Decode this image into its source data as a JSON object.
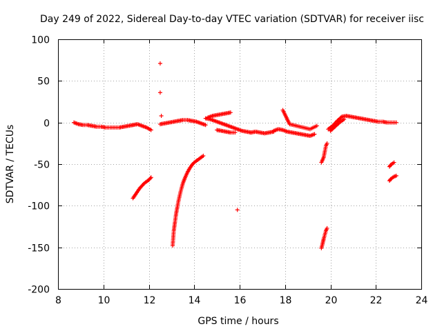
{
  "chart_data": {
    "type": "scatter",
    "title": "Day 249 of 2022, Sidereal Day-to-day VTEC variation (SDTVAR) for receiver iisc",
    "xlabel": "GPS time / hours",
    "ylabel": "SDTVAR / TECUs",
    "xlim": [
      8,
      24
    ],
    "ylim": [
      -200,
      100
    ],
    "xticks": [
      8,
      10,
      12,
      14,
      16,
      18,
      20,
      22,
      24
    ],
    "yticks": [
      -200,
      -150,
      -100,
      -50,
      0,
      50,
      100
    ],
    "grid": true,
    "marker": "+",
    "color": "#ff0000",
    "series": [
      {
        "name": "arc-main-1",
        "x": [
          8.7,
          8.9,
          9.1,
          9.3,
          9.5,
          9.7,
          9.9,
          10.1,
          10.3,
          10.5,
          10.7,
          10.9,
          11.1,
          11.3
        ],
        "y": [
          0,
          -2,
          -3,
          -3,
          -4,
          -5,
          -5,
          -6,
          -6,
          -6,
          -6,
          -5,
          -4,
          -3
        ]
      },
      {
        "name": "arc-early-11",
        "x": [
          11.3,
          11.5,
          11.7,
          11.9,
          12.1
        ],
        "y": [
          -3,
          -2,
          -4,
          -6,
          -9
        ]
      },
      {
        "name": "arc-lower-11",
        "x": [
          11.3,
          11.4,
          11.5,
          11.6,
          11.7,
          11.8,
          11.9,
          12.0,
          12.1
        ],
        "y": [
          -91,
          -87,
          -83,
          -79,
          -76,
          -73,
          -71,
          -69,
          -66
        ]
      },
      {
        "name": "arc-spikes-12.5",
        "x": [
          12.5,
          12.5,
          12.55
        ],
        "y": [
          71,
          36,
          8
        ]
      },
      {
        "name": "arc-mid-12.5",
        "x": [
          12.5,
          12.7,
          12.9,
          13.1,
          13.3,
          13.5,
          13.7,
          13.9,
          14.1,
          14.3,
          14.5
        ],
        "y": [
          -2,
          -1,
          0,
          1,
          2,
          3,
          3,
          2,
          1,
          -1,
          -3
        ]
      },
      {
        "name": "arc-rise-13",
        "x": [
          13.05,
          13.1,
          13.2,
          13.3,
          13.4,
          13.5,
          13.6,
          13.7,
          13.8,
          13.9,
          14.0,
          14.1,
          14.2,
          14.3,
          14.4
        ],
        "y": [
          -148,
          -130,
          -110,
          -95,
          -83,
          -73,
          -66,
          -60,
          -55,
          -51,
          -48,
          -46,
          -44,
          -42,
          -40
        ]
      },
      {
        "name": "arc-main-15",
        "x": [
          14.5,
          14.7,
          14.9,
          15.1,
          15.3,
          15.5,
          15.7,
          15.9,
          16.1,
          16.3,
          16.5
        ],
        "y": [
          5,
          4,
          2,
          0,
          -2,
          -4,
          -6,
          -8,
          -10,
          -11,
          -12
        ]
      },
      {
        "name": "arc-upper-15",
        "x": [
          14.6,
          14.8,
          15.0,
          15.2,
          15.4,
          15.6
        ],
        "y": [
          6,
          8,
          9,
          10,
          11,
          12
        ]
      },
      {
        "name": "arc-lower-15",
        "x": [
          15.0,
          15.2,
          15.4,
          15.6,
          15.8
        ],
        "y": [
          -9,
          -10,
          -11,
          -12,
          -12
        ]
      },
      {
        "name": "outlier-16",
        "x": [
          15.9
        ],
        "y": [
          -105
        ]
      },
      {
        "name": "arc-main-17",
        "x": [
          16.5,
          16.7,
          16.9,
          17.1,
          17.3,
          17.5
        ],
        "y": [
          -12,
          -11,
          -12,
          -13,
          -12,
          -11
        ]
      },
      {
        "name": "arc-main-18",
        "x": [
          17.5,
          17.7,
          17.9,
          18.1,
          18.3,
          18.5,
          18.7,
          18.9,
          19.1,
          19.3
        ],
        "y": [
          -10,
          -8,
          -9,
          -11,
          -12,
          -13,
          -14,
          -15,
          -16,
          -14
        ]
      },
      {
        "name": "arc-extra-18",
        "x": [
          17.9,
          18.2,
          18.5,
          18.8,
          19.1,
          19.4
        ],
        "y": [
          15,
          -2,
          -4,
          -6,
          -8,
          -4
        ]
      },
      {
        "name": "arc-drop-19.7",
        "x": [
          19.6,
          19.65,
          19.7,
          19.75,
          19.8,
          19.85
        ],
        "y": [
          -48,
          -45,
          -42,
          -35,
          -28,
          -25
        ]
      },
      {
        "name": "arc-low-19.7",
        "x": [
          19.6,
          19.65,
          19.7,
          19.75,
          19.8,
          19.85
        ],
        "y": [
          -151,
          -146,
          -140,
          -135,
          -130,
          -127
        ]
      },
      {
        "name": "arc-main-20",
        "x": [
          19.9,
          20.1,
          20.3,
          20.5,
          20.7,
          20.9,
          21.1,
          21.3,
          21.5,
          21.7,
          21.9,
          22.1,
          22.3,
          22.5,
          22.7,
          22.9
        ],
        "y": [
          -8,
          -4,
          2,
          7,
          8,
          7,
          6,
          5,
          4,
          3,
          2,
          1,
          1,
          0,
          0,
          0
        ]
      },
      {
        "name": "arc-upper-20",
        "x": [
          20.0,
          20.2,
          20.4,
          20.6
        ],
        "y": [
          -10,
          -5,
          0,
          4
        ]
      },
      {
        "name": "arc-lower-22.7",
        "x": [
          22.6,
          22.65,
          22.7,
          22.75,
          22.8
        ],
        "y": [
          -53,
          -51,
          -50,
          -49,
          -48
        ]
      },
      {
        "name": "arc-lowest-22.7",
        "x": [
          22.6,
          22.65,
          22.7,
          22.75,
          22.8,
          22.9
        ],
        "y": [
          -70,
          -68,
          -67,
          -66,
          -65,
          -64
        ]
      }
    ]
  }
}
